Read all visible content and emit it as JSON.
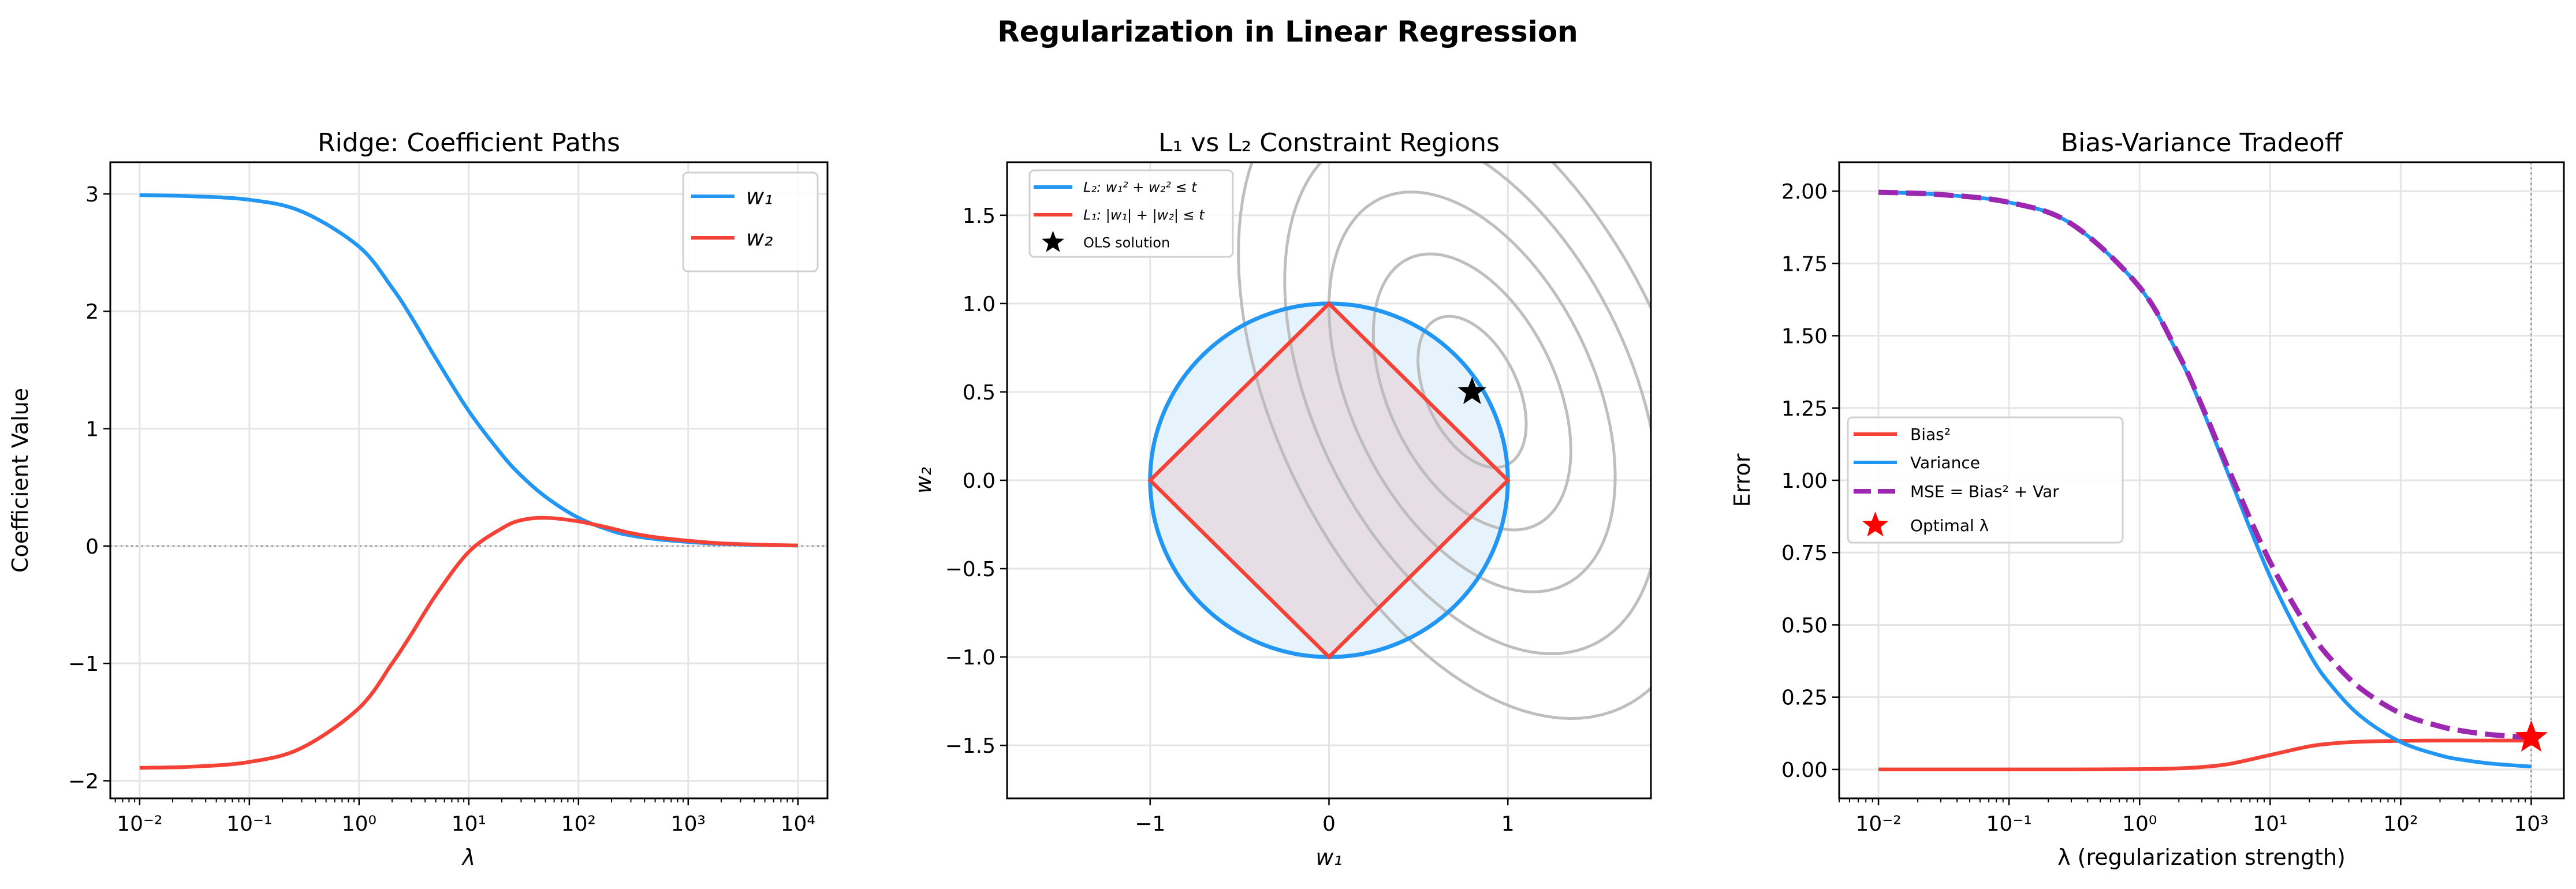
{
  "suptitle": "Regularization in Linear Regression",
  "colors": {
    "blue": "#2196F3",
    "red": "#F44336",
    "purple": "#9C27B0",
    "contour": "#bbbbbb",
    "star_optimal": "#ff0000",
    "star_ols": "#000000",
    "l2_fill": "#e3f2fd",
    "l1_fill": "#e6dde5"
  },
  "chart_data": [
    {
      "type": "line",
      "title": "Ridge: Coefficient Paths",
      "xlabel": "λ",
      "ylabel": "Coefficient Value",
      "xscale": "log",
      "xlim": [
        0.0054,
        18600
      ],
      "ylim": [
        -2.15,
        3.27
      ],
      "grid": true,
      "legend": "top-right",
      "xticks": [
        0.01,
        0.1,
        1,
        10,
        100,
        1000,
        10000
      ],
      "xtick_labels": [
        "10⁻²",
        "10⁻¹",
        "10⁰",
        "10¹",
        "10²",
        "10³",
        "10⁴"
      ],
      "yticks": [
        -2,
        -1,
        0,
        1,
        2,
        3
      ],
      "ytick_labels": [
        "−2",
        "−1",
        "0",
        "1",
        "2",
        "3"
      ],
      "hline": 0,
      "x": [
        0.01,
        0.03,
        0.1,
        0.3,
        1,
        2,
        3,
        5,
        10,
        20,
        30,
        50,
        100,
        200,
        300,
        500,
        1000,
        2000,
        5000,
        10000
      ],
      "series": [
        {
          "name": "w₁",
          "color": "#2196F3",
          "values": [
            2.99,
            2.98,
            2.95,
            2.85,
            2.55,
            2.2,
            1.95,
            1.6,
            1.15,
            0.78,
            0.6,
            0.42,
            0.24,
            0.13,
            0.09,
            0.06,
            0.035,
            0.018,
            0.008,
            0.004
          ]
        },
        {
          "name": "w₂",
          "color": "#F44336",
          "values": [
            -1.89,
            -1.88,
            -1.84,
            -1.72,
            -1.38,
            -1.0,
            -0.75,
            -0.42,
            -0.05,
            0.15,
            0.22,
            0.24,
            0.21,
            0.15,
            0.11,
            0.075,
            0.045,
            0.023,
            0.01,
            0.005
          ]
        }
      ]
    },
    {
      "type": "diagram",
      "title": "L₁ vs L₂ Constraint Regions",
      "xlabel": "w₁",
      "ylabel": "w₂",
      "xlim": [
        -1.8,
        1.8
      ],
      "ylim": [
        -1.8,
        1.8
      ],
      "grid": true,
      "legend": "top-left",
      "xticks": [
        -1,
        0,
        1
      ],
      "xtick_labels": [
        "−1",
        "0",
        "1"
      ],
      "yticks": [
        -1.5,
        -1.0,
        -0.5,
        0.0,
        0.5,
        1.0,
        1.5
      ],
      "ytick_labels": [
        "−1.5",
        "−1.0",
        "−0.5",
        "0.0",
        "0.5",
        "1.0",
        "1.5"
      ],
      "constraint_t": 1,
      "ols_solution": [
        0.8,
        0.5
      ],
      "contour_matrix": [
        [
          2,
          0.6
        ],
        [
          0.6,
          1
        ]
      ],
      "contour_levels": [
        0.15,
        0.5,
        1.05,
        1.8,
        2.8
      ],
      "legend_entries": [
        {
          "label": "L₂: w₁² + w₂² ≤ t",
          "color": "#2196F3"
        },
        {
          "label": "L₁: |w₁| + |w₂| ≤ t",
          "color": "#F44336"
        },
        {
          "label": "OLS solution",
          "color": "#000000"
        }
      ]
    },
    {
      "type": "line",
      "title": "Bias-Variance Tradeoff",
      "xlabel": "λ (regularization strength)",
      "ylabel": "Error",
      "xscale": "log",
      "xlim": [
        0.005,
        1778
      ],
      "ylim": [
        -0.1,
        2.1
      ],
      "grid": true,
      "legend": "center-left",
      "xticks": [
        0.01,
        0.1,
        1,
        10,
        100,
        1000
      ],
      "xtick_labels": [
        "10⁻²",
        "10⁻¹",
        "10⁰",
        "10¹",
        "10²",
        "10³"
      ],
      "yticks": [
        0,
        0.25,
        0.5,
        0.75,
        1.0,
        1.25,
        1.5,
        1.75,
        2.0
      ],
      "ytick_labels": [
        "0.00",
        "0.25",
        "0.50",
        "0.75",
        "1.00",
        "1.25",
        "1.50",
        "1.75",
        "2.00"
      ],
      "vline": 1000,
      "x": [
        0.01,
        0.03,
        0.1,
        0.3,
        1,
        2,
        3,
        5,
        10,
        20,
        30,
        50,
        100,
        200,
        300,
        500,
        1000
      ],
      "series": [
        {
          "name": "Bias²",
          "color": "#F44336",
          "style": "solid",
          "values": [
            0,
            0,
            0.0001,
            0.0001,
            0.001,
            0.0038,
            0.0083,
            0.02,
            0.05,
            0.08,
            0.09,
            0.0962,
            0.099,
            0.0998,
            0.0999,
            0.1,
            0.1
          ]
        },
        {
          "name": "Variance",
          "color": "#2196F3",
          "style": "solid",
          "values": [
            1.996,
            1.988,
            1.961,
            1.887,
            1.667,
            1.429,
            1.25,
            1.0,
            0.667,
            0.4,
            0.286,
            0.182,
            0.095,
            0.049,
            0.033,
            0.02,
            0.01
          ]
        },
        {
          "name": "MSE = Bias² + Var",
          "color": "#9C27B0",
          "style": "dashed",
          "values": [
            1.996,
            1.988,
            1.961,
            1.887,
            1.668,
            1.433,
            1.258,
            1.02,
            0.717,
            0.48,
            0.376,
            0.278,
            0.194,
            0.149,
            0.133,
            0.12,
            0.11
          ]
        }
      ],
      "optimal": {
        "name": "Optimal λ",
        "x": 1000,
        "y": 0.11
      }
    }
  ]
}
